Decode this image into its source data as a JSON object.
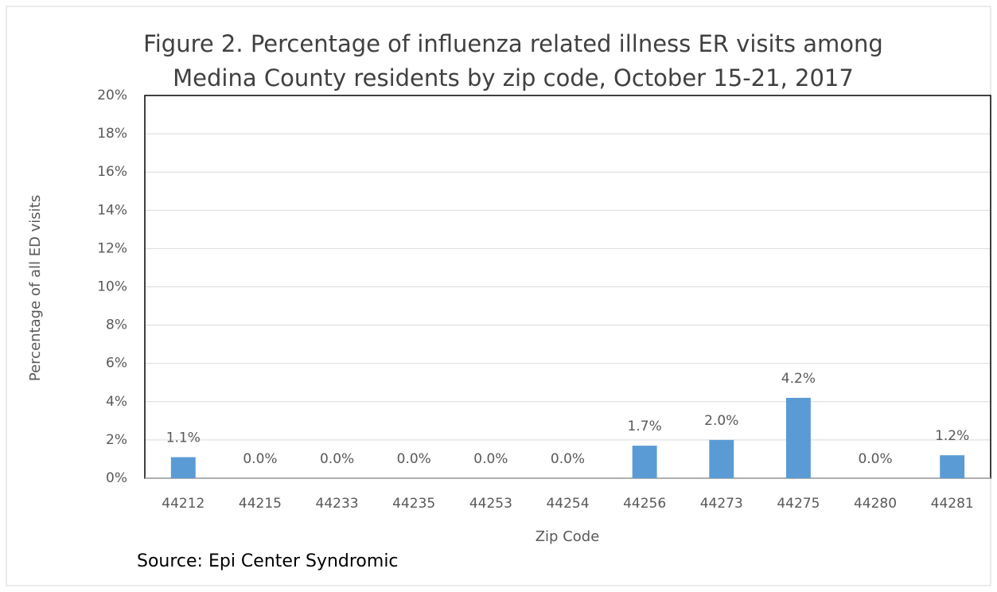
{
  "chart_data": {
    "type": "bar",
    "title": [
      "Figure 2. Percentage of influenza related illness ER visits among",
      "Medina County residents by zip code, October 15-21, 2017"
    ],
    "categories": [
      "44212",
      "44215",
      "44233",
      "44235",
      "44253",
      "44254",
      "44256",
      "44273",
      "44275",
      "44280",
      "44281"
    ],
    "values": [
      1.1,
      0,
      0,
      0,
      0,
      0,
      1.7,
      2.0,
      4.2,
      0,
      1.2
    ],
    "value_labels": [
      "1.1%",
      "0.0%",
      "0.0%",
      "0.0%",
      "0.0%",
      "0.0%",
      "1.7%",
      "2.0%",
      "4.2%",
      "0.0%",
      "1.2%"
    ],
    "color": "#5b9bd5",
    "ylim": [
      0,
      20
    ],
    "yticks": [
      {
        "value": 0,
        "label": "0%"
      },
      {
        "value": 2,
        "label": "2%"
      },
      {
        "value": 4,
        "label": "4%"
      },
      {
        "value": 6,
        "label": "6%"
      },
      {
        "value": 8,
        "label": "8%"
      },
      {
        "value": 10,
        "label": "10%"
      },
      {
        "value": 12,
        "label": "12%"
      },
      {
        "value": 14,
        "label": "14%"
      },
      {
        "value": 16,
        "label": "16%"
      },
      {
        "value": 18,
        "label": "18%"
      },
      {
        "value": 20,
        "label": "20%"
      }
    ],
    "grid": true,
    "xlabel": "Zip Code",
    "ylabel": "Percentage of all ED visits",
    "source": "Source: Epi Center Syndromic"
  }
}
